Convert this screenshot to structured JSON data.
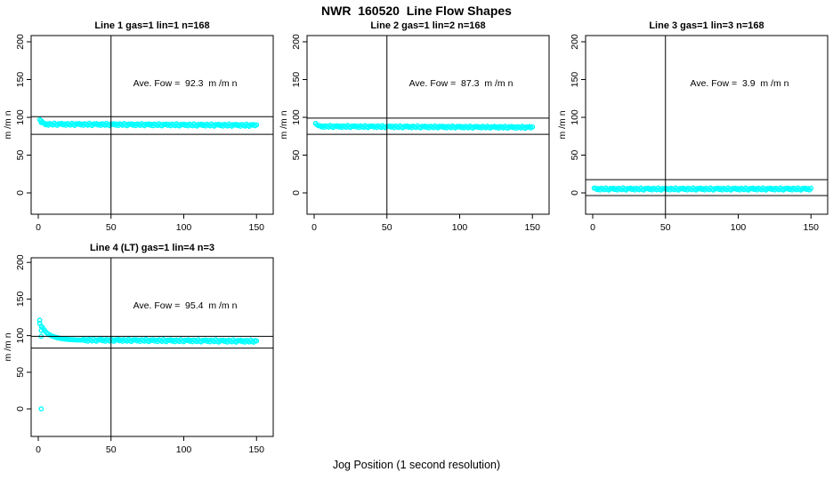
{
  "page": {
    "title": "NWR  160520  Line Flow Shapes",
    "xlabel": "Jog Position (1 second resolution)",
    "background": "#FFFFFF"
  },
  "colors": {
    "points": "#00FFFF",
    "axis": "#000000",
    "text": "#000000"
  },
  "noise_cycle": [
    0.9,
    -0.6,
    0.4,
    -1.1,
    0.8,
    0.0,
    -0.9,
    1.2,
    -0.3,
    -1.2,
    0.6,
    0.15
  ],
  "chart_data": [
    {
      "type": "scatter",
      "title": "Line 1 gas=1 lin=1 n=168",
      "annotation": "Ave. Fow =  92.3  m /m n",
      "ave_flow": 92.3,
      "n": 168,
      "ylabel": "m /m n",
      "xticks": [
        0,
        50,
        100,
        150
      ],
      "yticks": [
        0,
        50,
        100,
        150,
        200
      ],
      "xlim": [
        -5,
        161
      ],
      "ylim": [
        -28,
        208
      ],
      "vline_x": 50,
      "hlines": [
        101,
        77.5
      ],
      "head_points": [
        [
          1,
          97
        ],
        [
          2,
          95.5
        ],
        [
          2,
          93
        ],
        [
          3,
          93.5
        ]
      ],
      "band": {
        "x_start": 4,
        "x_end": 150,
        "y_start": 91.0,
        "y_end": 89.5,
        "noise": 1.2
      },
      "outliers": []
    },
    {
      "type": "scatter",
      "title": "Line 2 gas=1 lin=2 n=168",
      "annotation": "Ave. Fow =  87.3  m /m n",
      "ave_flow": 87.3,
      "n": 168,
      "ylabel": "m /m n",
      "xticks": [
        0,
        50,
        100,
        150
      ],
      "yticks": [
        0,
        50,
        100,
        150,
        200
      ],
      "xlim": [
        -5,
        161
      ],
      "ylim": [
        -28,
        208
      ],
      "vline_x": 50,
      "hlines": [
        99,
        77.5
      ],
      "head_points": [
        [
          1,
          92
        ],
        [
          2,
          90
        ],
        [
          3,
          89
        ]
      ],
      "band": {
        "x_start": 4,
        "x_end": 150,
        "y_start": 88.0,
        "y_end": 86.8,
        "noise": 1.1
      },
      "outliers": []
    },
    {
      "type": "scatter",
      "title": "Line 3 gas=1 lin=3 n=168",
      "annotation": "Ave. Fow =  3.9  m /m n",
      "ave_flow": 3.9,
      "n": 168,
      "ylabel": "m /m n",
      "xticks": [
        0,
        50,
        100,
        150
      ],
      "yticks": [
        0,
        50,
        100,
        150,
        200
      ],
      "xlim": [
        -5,
        161
      ],
      "ylim": [
        -28,
        208
      ],
      "vline_x": 50,
      "hlines": [
        17.5,
        -3.5
      ],
      "head_points": [
        [
          1,
          6.2
        ]
      ],
      "band": {
        "x_start": 2,
        "x_end": 150,
        "y_start": 5.2,
        "y_end": 5.2,
        "noise": 1.2
      },
      "outliers": []
    },
    {
      "type": "scatter",
      "title": "Line 4 (LT) gas=1 lin=4 n=3",
      "annotation": "Ave. Fow =  95.4  m /m n",
      "ave_flow": 95.4,
      "n": 3,
      "ylabel": "m /m n",
      "xticks": [
        0,
        50,
        100,
        150
      ],
      "yticks": [
        0,
        50,
        100,
        150,
        200
      ],
      "xlim": [
        -5,
        161
      ],
      "ylim": [
        -30,
        206
      ],
      "vline_x": 50,
      "hlines": [
        99,
        83
      ],
      "head_points": [
        [
          1,
          121
        ],
        [
          1,
          117
        ],
        [
          2,
          113
        ],
        [
          2,
          107
        ],
        [
          2,
          99
        ],
        [
          3,
          111
        ],
        [
          4,
          108
        ],
        [
          5,
          105.5
        ],
        [
          6,
          103.5
        ],
        [
          7,
          102
        ],
        [
          8,
          100.8
        ],
        [
          9,
          99.8
        ],
        [
          10,
          99
        ],
        [
          11,
          98.3
        ],
        [
          12,
          97.7
        ],
        [
          13,
          97.2
        ],
        [
          14,
          96.7
        ],
        [
          15,
          96.3
        ],
        [
          16,
          96
        ],
        [
          17,
          95.7
        ],
        [
          18,
          95.4
        ],
        [
          19,
          95.2
        ],
        [
          20,
          95
        ],
        [
          21,
          94.8
        ],
        [
          22,
          94.6
        ],
        [
          23,
          94.5
        ],
        [
          24,
          94.4
        ],
        [
          25,
          94.3
        ],
        [
          26,
          94.2
        ],
        [
          27,
          94.1
        ],
        [
          28,
          94
        ],
        [
          29,
          94
        ],
        [
          30,
          93.9
        ]
      ],
      "band": {
        "x_start": 31,
        "x_end": 150,
        "y_start": 94.0,
        "y_end": 92.5,
        "noise": 1.3
      },
      "outliers": [
        [
          2,
          0
        ]
      ]
    }
  ]
}
